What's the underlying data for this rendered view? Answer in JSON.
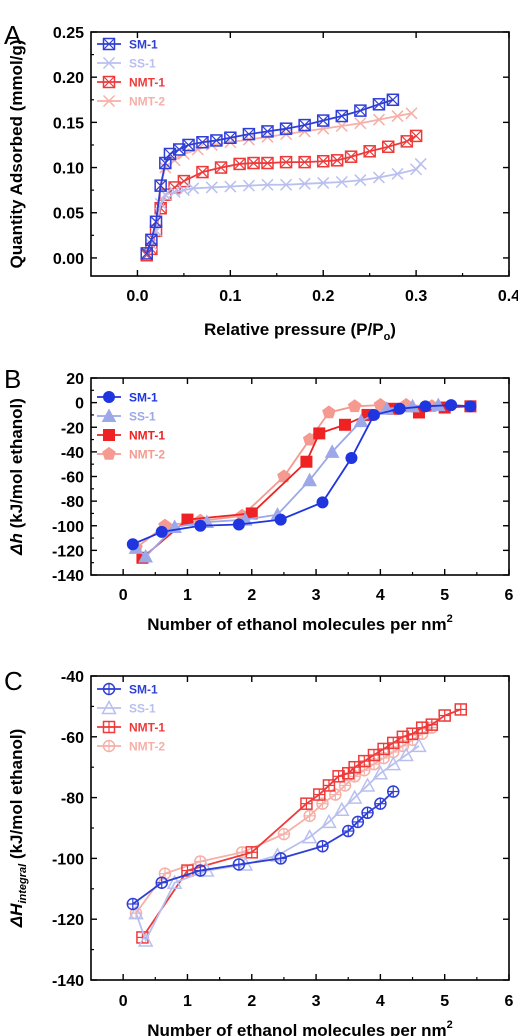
{
  "chart_data": [
    {
      "panel_label": "A",
      "type": "line",
      "marker_style": "boxed-x",
      "xlabel": "Relative pressure (P/P",
      "xlabel_sub": "o",
      "xlabel_tail": ")",
      "ylabel": "Quantity Adsorbed (mmol/g)",
      "xlim": [
        -0.05,
        0.4
      ],
      "ylim": [
        -0.02,
        0.25
      ],
      "xticks": [
        0.0,
        0.1,
        0.2,
        0.3,
        0.4
      ],
      "xtick_labels": [
        "0.0",
        "0.1",
        "0.2",
        "0.3",
        "0.4"
      ],
      "yticks": [
        0.0,
        0.05,
        0.1,
        0.15,
        0.2,
        0.25
      ],
      "ytick_labels": [
        "0.00",
        "0.05",
        "0.10",
        "0.15",
        "0.20",
        "0.25"
      ],
      "legend_position": "top-left",
      "series": [
        {
          "name": "SM-1",
          "color": "#2f3fd6",
          "x": [
            0.01,
            0.015,
            0.02,
            0.025,
            0.03,
            0.035,
            0.045,
            0.055,
            0.07,
            0.085,
            0.1,
            0.12,
            0.14,
            0.16,
            0.18,
            0.2,
            0.22,
            0.24,
            0.26,
            0.275
          ],
          "y": [
            0.005,
            0.02,
            0.04,
            0.08,
            0.105,
            0.115,
            0.12,
            0.125,
            0.128,
            0.13,
            0.133,
            0.137,
            0.14,
            0.143,
            0.147,
            0.152,
            0.157,
            0.163,
            0.17,
            0.175
          ]
        },
        {
          "name": "SS-1",
          "color": "#b9c0ef",
          "x": [
            0.01,
            0.015,
            0.02,
            0.025,
            0.03,
            0.04,
            0.05,
            0.06,
            0.08,
            0.1,
            0.12,
            0.14,
            0.16,
            0.18,
            0.2,
            0.22,
            0.24,
            0.26,
            0.28,
            0.3,
            0.305
          ],
          "y": [
            0.005,
            0.015,
            0.03,
            0.06,
            0.07,
            0.073,
            0.075,
            0.077,
            0.078,
            0.079,
            0.08,
            0.081,
            0.081,
            0.082,
            0.083,
            0.084,
            0.086,
            0.089,
            0.093,
            0.098,
            0.104
          ]
        },
        {
          "name": "NMT-1",
          "color": "#ee3a3a",
          "x": [
            0.01,
            0.015,
            0.02,
            0.025,
            0.03,
            0.04,
            0.05,
            0.07,
            0.09,
            0.11,
            0.125,
            0.14,
            0.16,
            0.18,
            0.2,
            0.215,
            0.23,
            0.25,
            0.27,
            0.29,
            0.3
          ],
          "y": [
            0.003,
            0.01,
            0.03,
            0.055,
            0.07,
            0.078,
            0.085,
            0.095,
            0.1,
            0.104,
            0.105,
            0.105,
            0.106,
            0.106,
            0.107,
            0.108,
            0.112,
            0.118,
            0.123,
            0.129,
            0.135
          ]
        },
        {
          "name": "NMT-2",
          "color": "#f5b0a8",
          "x": [
            0.01,
            0.015,
            0.02,
            0.025,
            0.03,
            0.04,
            0.05,
            0.065,
            0.08,
            0.1,
            0.12,
            0.14,
            0.16,
            0.18,
            0.2,
            0.22,
            0.24,
            0.26,
            0.28,
            0.295
          ],
          "y": [
            0.005,
            0.02,
            0.04,
            0.08,
            0.1,
            0.108,
            0.115,
            0.12,
            0.125,
            0.128,
            0.131,
            0.134,
            0.137,
            0.14,
            0.143,
            0.146,
            0.149,
            0.153,
            0.157,
            0.16
          ]
        }
      ]
    },
    {
      "panel_label": "B",
      "type": "line",
      "marker_style": "filled",
      "xlabel": "Number of ethanol molecules per nm",
      "xlabel_sup": "2",
      "ylabel_sym": "Δh",
      "ylabel_tail": " (kJ/mol ethanol)",
      "xlim": [
        -0.5,
        6
      ],
      "ylim": [
        -140,
        20
      ],
      "xticks": [
        0,
        1,
        2,
        3,
        4,
        5,
        6
      ],
      "xtick_labels": [
        "0",
        "1",
        "2",
        "3",
        "4",
        "5",
        "6"
      ],
      "yticks": [
        -140,
        -120,
        -100,
        -80,
        -60,
        -40,
        -20,
        0,
        20
      ],
      "ytick_labels": [
        "-140",
        "-120",
        "-100",
        "-80",
        "-60",
        "-40",
        "-20",
        "0",
        "20"
      ],
      "legend_position": "top-left",
      "series": [
        {
          "name": "SM-1",
          "color": "#1f35e0",
          "marker": "circle",
          "x": [
            0.15,
            0.6,
            1.2,
            1.8,
            2.45,
            3.1,
            3.55,
            3.9,
            4.3,
            4.7,
            5.1,
            5.4
          ],
          "y": [
            -115,
            -105,
            -100,
            -99,
            -95,
            -81,
            -45,
            -10,
            -5,
            -3,
            -2,
            -3
          ]
        },
        {
          "name": "SS-1",
          "color": "#9ca8e8",
          "marker": "triangle",
          "x": [
            0.2,
            0.35,
            0.8,
            1.3,
            1.9,
            2.4,
            2.9,
            3.25,
            3.7,
            4.1,
            4.5,
            4.9
          ],
          "y": [
            -118,
            -125,
            -101,
            -97,
            -95,
            -91,
            -63,
            -40,
            -15,
            -5,
            -3,
            -2
          ]
        },
        {
          "name": "NMT-1",
          "color": "#ee2222",
          "marker": "square",
          "x": [
            0.3,
            1.0,
            2.0,
            2.85,
            3.05,
            3.45,
            3.8,
            4.2,
            4.6,
            5.0,
            5.4
          ],
          "y": [
            -126,
            -95,
            -90,
            -48,
            -25,
            -18,
            -10,
            -5,
            -8,
            -4,
            -3
          ]
        },
        {
          "name": "NMT-2",
          "color": "#f59a90",
          "marker": "pentagon",
          "x": [
            0.2,
            0.65,
            1.2,
            1.85,
            2.5,
            2.9,
            3.2,
            3.6,
            4.0,
            4.4,
            4.8
          ],
          "y": [
            -118,
            -100,
            -96,
            -92,
            -60,
            -30,
            -8,
            -3,
            -2,
            -2,
            -3
          ]
        }
      ]
    },
    {
      "panel_label": "C",
      "type": "line",
      "marker_style": "open",
      "xlabel": "Number of ethanol molecules per nm",
      "xlabel_sup": "2",
      "ylabel_sym": "ΔH",
      "ylabel_sub": "integral",
      "ylabel_tail": " (kJ/mol ethanol)",
      "xlim": [
        -0.5,
        6
      ],
      "ylim": [
        -140,
        -40
      ],
      "xticks": [
        0,
        1,
        2,
        3,
        4,
        5,
        6
      ],
      "xtick_labels": [
        "0",
        "1",
        "2",
        "3",
        "4",
        "5",
        "6"
      ],
      "yticks": [
        -140,
        -120,
        -100,
        -80,
        -60,
        -40
      ],
      "ytick_labels": [
        "-140",
        "-120",
        "-100",
        "-80",
        "-60",
        "-40"
      ],
      "legend_position": "top-left",
      "series": [
        {
          "name": "SM-1",
          "color": "#2f3fd6",
          "marker": "circle-plus",
          "x": [
            0.15,
            0.6,
            1.2,
            1.8,
            2.45,
            3.1,
            3.5,
            3.65,
            3.8,
            4.0,
            4.2
          ],
          "y": [
            -115,
            -108,
            -104,
            -102,
            -100,
            -96,
            -91,
            -88,
            -85,
            -82,
            -78
          ]
        },
        {
          "name": "SS-1",
          "color": "#b9c0ef",
          "marker": "triangle",
          "x": [
            0.2,
            0.35,
            0.8,
            1.3,
            1.9,
            2.4,
            2.9,
            3.2,
            3.4,
            3.6,
            3.8,
            4.0,
            4.2,
            4.4,
            4.6
          ],
          "y": [
            -118,
            -127,
            -108,
            -104,
            -102,
            -99,
            -93,
            -88,
            -84,
            -80,
            -76,
            -72,
            -69,
            -66,
            -63
          ]
        },
        {
          "name": "NMT-1",
          "color": "#ee3a3a",
          "marker": "square-plus",
          "x": [
            0.3,
            1.0,
            2.0,
            2.85,
            3.05,
            3.2,
            3.35,
            3.5,
            3.6,
            3.75,
            3.9,
            4.05,
            4.2,
            4.35,
            4.5,
            4.65,
            4.8,
            5.0,
            5.25
          ],
          "y": [
            -126,
            -104,
            -98,
            -82,
            -79,
            -76,
            -73,
            -72,
            -70,
            -68,
            -66,
            -64,
            -62,
            -60,
            -59,
            -57,
            -56,
            -53,
            -51
          ]
        },
        {
          "name": "NMT-2",
          "color": "#f5b0a8",
          "marker": "circle-plus",
          "x": [
            0.2,
            0.65,
            1.2,
            1.85,
            2.5,
            2.9,
            3.1,
            3.3,
            3.45,
            3.6,
            3.75,
            3.9,
            4.05,
            4.2,
            4.35,
            4.5,
            4.65,
            4.8
          ],
          "y": [
            -118,
            -105,
            -101,
            -98,
            -92,
            -86,
            -82,
            -79,
            -76,
            -73,
            -71,
            -69,
            -67,
            -65,
            -63,
            -61,
            -59,
            -57
          ]
        }
      ]
    }
  ]
}
